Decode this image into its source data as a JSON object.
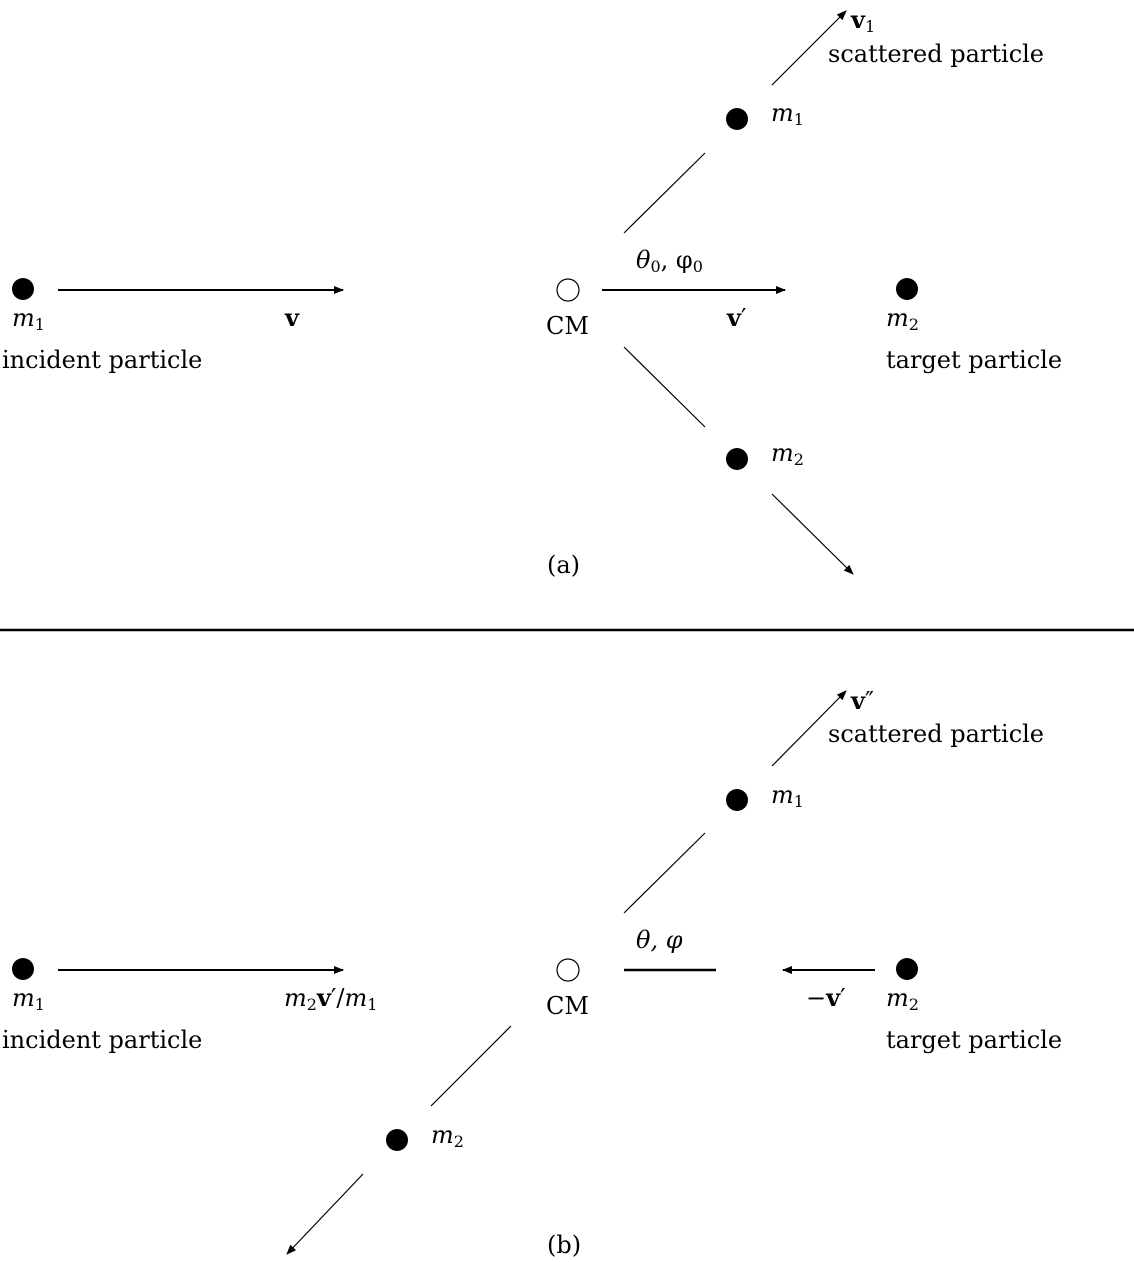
{
  "panel_a": {
    "caption": "(a)",
    "incident": {
      "mass": "m",
      "mass_sub": "1",
      "label": "incident particle",
      "velocity": "v"
    },
    "cm": {
      "label": "CM",
      "velocity": "v",
      "velocity_prime": "′",
      "angles": "θ",
      "angles_sub0": "0",
      "angles_mid": ", φ",
      "angles_sub1": "0"
    },
    "target": {
      "mass": "m",
      "mass_sub": "2",
      "label": "target particle"
    },
    "scattered": {
      "mass": "m",
      "mass_sub": "1",
      "velocity": "v",
      "velocity_sub": "1",
      "label": "scattered particle"
    },
    "recoil": {
      "mass": "m",
      "mass_sub": "2"
    }
  },
  "panel_b": {
    "caption": "(b)",
    "incident": {
      "mass": "m",
      "mass_sub": "1",
      "label": "incident particle",
      "vel_m": "m",
      "vel_m_sub": "2",
      "vel_v": "v",
      "vel_prime": "′/",
      "vel_m2": "m",
      "vel_m2_sub": "1"
    },
    "cm": {
      "label": "CM",
      "angles": "θ, φ"
    },
    "target": {
      "mass": "m",
      "mass_sub": "2",
      "label": "target particle",
      "velocity_sign": "−",
      "velocity": "v",
      "velocity_prime": "′"
    },
    "scattered": {
      "mass": "m",
      "mass_sub": "1",
      "velocity": "v",
      "velocity_prime": "″",
      "label": "scattered particle"
    },
    "recoil": {
      "mass": "m",
      "mass_sub": "2"
    }
  }
}
